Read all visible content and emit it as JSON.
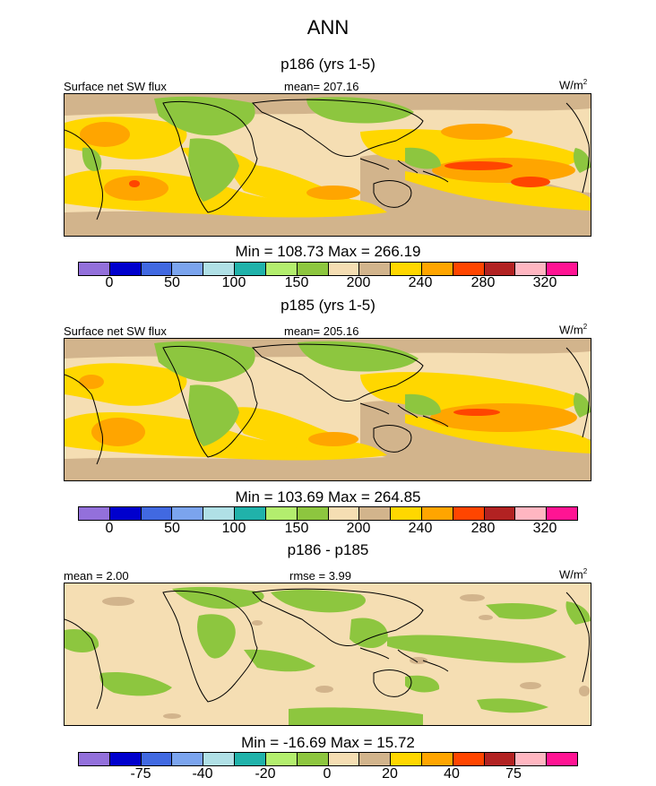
{
  "title": "ANN",
  "panels": [
    {
      "subtitle": "p186 (yrs 1-5)",
      "left_label": "Surface net SW flux",
      "center_label": "mean= 207.16",
      "units": "W/m",
      "units_sup": "2",
      "minmax": "Min = 108.73 Max = 266.19",
      "tick_labels": [
        "0",
        "50",
        "100",
        "150",
        "200",
        "240",
        "280",
        "320"
      ],
      "palette": [
        "#9370db",
        "#0000cd",
        "#4169e1",
        "#7ba4ee",
        "#b0e0e6",
        "#20b2aa",
        "#b3ee6e",
        "#8dc63f",
        "#f5deb3",
        "#d2b48c",
        "#ffd700",
        "#ffa500",
        "#ff4500",
        "#b22222",
        "#ffb6c1",
        "#ff1493"
      ]
    },
    {
      "subtitle": "p185 (yrs 1-5)",
      "left_label": "Surface net SW flux",
      "center_label": "mean= 205.16",
      "units": "W/m",
      "units_sup": "2",
      "minmax": "Min = 103.69 Max = 264.85",
      "tick_labels": [
        "0",
        "50",
        "100",
        "150",
        "200",
        "240",
        "280",
        "320"
      ],
      "palette": [
        "#9370db",
        "#0000cd",
        "#4169e1",
        "#7ba4ee",
        "#b0e0e6",
        "#20b2aa",
        "#b3ee6e",
        "#8dc63f",
        "#f5deb3",
        "#d2b48c",
        "#ffd700",
        "#ffa500",
        "#ff4500",
        "#b22222",
        "#ffb6c1",
        "#ff1493"
      ]
    },
    {
      "subtitle": "p186 - p185",
      "left_label": "mean =   2.00",
      "center_label": "rmse =   3.99",
      "units": "W/m",
      "units_sup": "2",
      "minmax": "Min = -16.69 Max =  15.72",
      "tick_labels": [
        "-75",
        "-40",
        "-20",
        "0",
        "20",
        "40",
        "75"
      ],
      "palette": [
        "#9370db",
        "#0000cd",
        "#4169e1",
        "#7ba4ee",
        "#b0e0e6",
        "#20b2aa",
        "#b3ee6e",
        "#8dc63f",
        "#f5deb3",
        "#d2b48c",
        "#ffd700",
        "#ffa500",
        "#ff4500",
        "#b22222",
        "#ffb6c1",
        "#ff1493"
      ]
    }
  ]
}
